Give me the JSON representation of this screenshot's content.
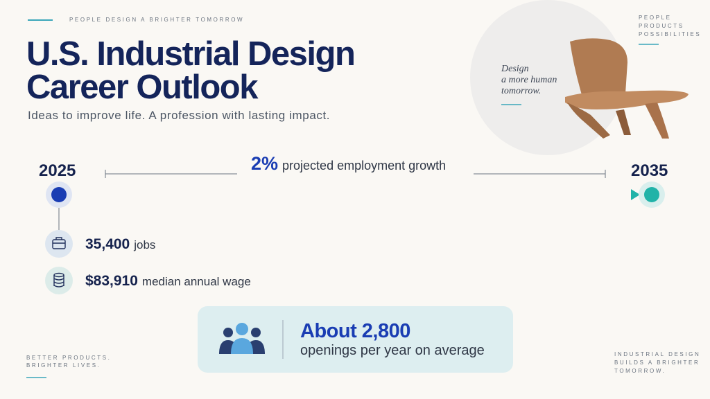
{
  "header": {
    "eyebrow": "PEOPLE DESIGN A BRIGHTER TOMORROW",
    "title_lines": [
      "U.S. Industrial Design",
      "Career Outlook"
    ],
    "subtitle": "Ideas to improve life. A profession with lasting impact."
  },
  "corner_top_right": [
    "PEOPLE",
    "PRODUCTS",
    "POSSIBILITIES"
  ],
  "quote": [
    "Design",
    "a more human",
    "tomorrow."
  ],
  "timeline": {
    "start": "2025",
    "end": "2035",
    "growth_value": "2%",
    "growth_text": "projected employment growth"
  },
  "stats": [
    {
      "value": "35,400",
      "label": "jobs"
    },
    {
      "value": "$83,910",
      "label": "median annual wage"
    }
  ],
  "callout": {
    "value": "About 2,800",
    "label": "openings per year on average"
  },
  "footer_left": [
    "BETTER PRODUCTS.",
    "BRIGHTER LIVES."
  ],
  "footer_right": [
    "INDUSTRIAL DESIGN",
    "BUILDS A BRIGHTER",
    "TOMORROW."
  ]
}
